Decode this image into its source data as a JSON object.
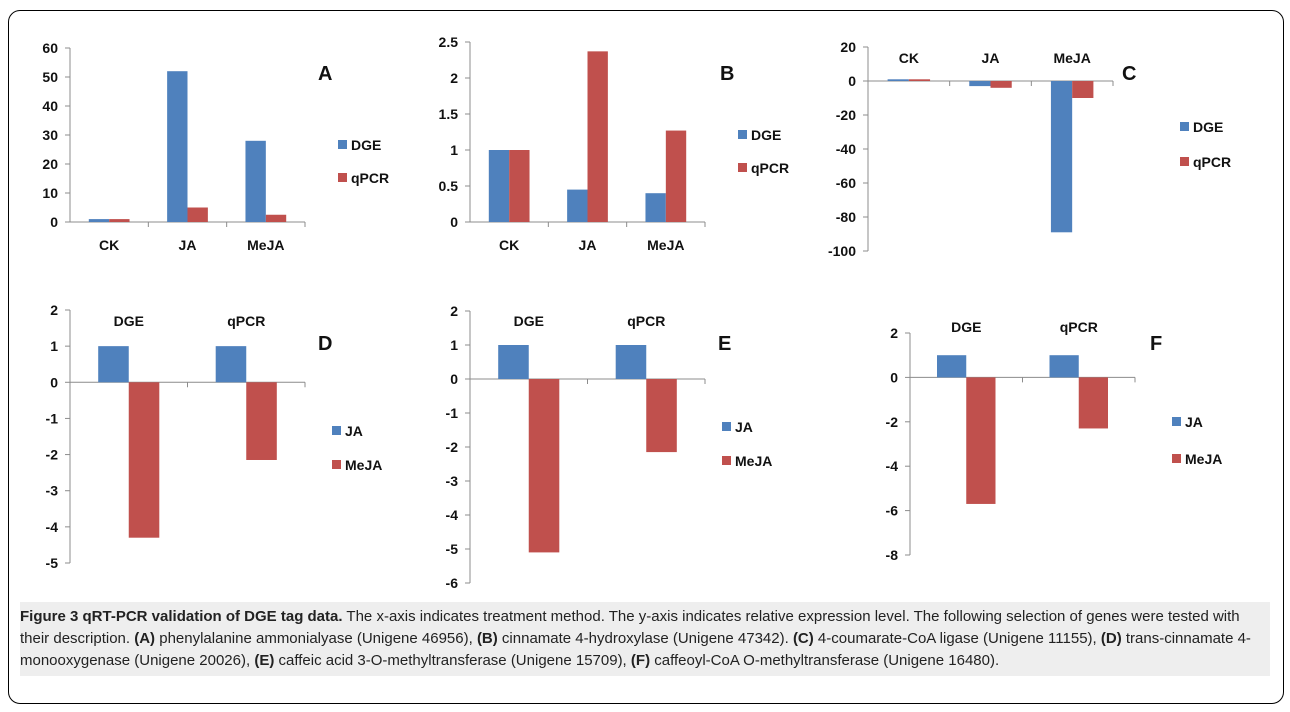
{
  "caption": {
    "title": "Figure 3 qRT-PCR validation of DGE tag data.",
    "text_1": " The x-axis indicates treatment method. The y-axis indicates relative expression level. The following selection of genes were tested with their description. ",
    "label_a": "(A)",
    "desc_a": " phenylalanine ammonialyase (Unigene 46956), ",
    "label_b": "(B)",
    "desc_b": " cinnamate 4-hydroxylase (Unigene 47342). ",
    "label_c": "(C)",
    "desc_c": " 4-coumarate-CoA ligase (Unigene 11155), ",
    "label_d": "(D)",
    "desc_d": " trans-cinnamate 4-monooxygenase (Unigene 20026), ",
    "label_e": "(E)",
    "desc_e": " caffeic acid 3-O-methyltransferase (Unigene 15709), ",
    "label_f": "(F)",
    "desc_f": " caffeoyl-CoA O-methyltransferase (Unigene 16480)."
  },
  "colors": {
    "series_1": "#4f81bd",
    "series_2": "#c0504d",
    "axis": "#8c8c8c"
  },
  "chart_data": [
    {
      "panel": "A",
      "type": "bar",
      "categories": [
        "CK",
        "JA",
        "MeJA"
      ],
      "series": [
        {
          "name": "DGE",
          "values": [
            1,
            52,
            28
          ]
        },
        {
          "name": "qPCR",
          "values": [
            1,
            5,
            2.5
          ]
        }
      ],
      "ylim": [
        0,
        60
      ],
      "yticks": [
        0,
        10,
        20,
        30,
        40,
        50,
        60
      ],
      "ytick_labels": [
        "0",
        "10",
        "20",
        "30",
        "40",
        "50",
        "60"
      ],
      "category_labels_at": "bottom"
    },
    {
      "panel": "B",
      "type": "bar",
      "categories": [
        "CK",
        "JA",
        "MeJA"
      ],
      "series": [
        {
          "name": "DGE",
          "values": [
            1,
            0.45,
            0.4
          ]
        },
        {
          "name": "qPCR",
          "values": [
            1,
            2.37,
            1.27
          ]
        }
      ],
      "ylim": [
        0,
        2.5
      ],
      "yticks": [
        0,
        0.5,
        1,
        1.5,
        2,
        2.5
      ],
      "ytick_labels": [
        "0",
        "0.5",
        "1",
        "1.5",
        "2",
        "2.5"
      ],
      "category_labels_at": "bottom"
    },
    {
      "panel": "C",
      "type": "bar",
      "categories": [
        "CK",
        "JA",
        "MeJA"
      ],
      "series": [
        {
          "name": "DGE",
          "values": [
            1,
            -3,
            -89
          ]
        },
        {
          "name": "qPCR",
          "values": [
            1,
            -4,
            -10
          ]
        }
      ],
      "ylim": [
        -100,
        20
      ],
      "yticks": [
        -100,
        -80,
        -60,
        -40,
        -20,
        0,
        20
      ],
      "ytick_labels": [
        "-100",
        "-80",
        "-60",
        "-40",
        "-20",
        "0",
        "20"
      ],
      "category_labels_at": "top"
    },
    {
      "panel": "D",
      "type": "bar",
      "categories": [
        "DGE",
        "qPCR"
      ],
      "series": [
        {
          "name": "JA",
          "values": [
            1,
            1
          ]
        },
        {
          "name": "MeJA",
          "values": [
            -4.3,
            -2.15
          ]
        }
      ],
      "ylim": [
        -5,
        2
      ],
      "yticks": [
        -5,
        -4,
        -3,
        -2,
        -1,
        0,
        1,
        2
      ],
      "ytick_labels": [
        "-5",
        "-4",
        "-3",
        "-2",
        "-1",
        "0",
        "1",
        "2"
      ],
      "category_labels_at": "top"
    },
    {
      "panel": "E",
      "type": "bar",
      "categories": [
        "DGE",
        "qPCR"
      ],
      "series": [
        {
          "name": "JA",
          "values": [
            1,
            1
          ]
        },
        {
          "name": "MeJA",
          "values": [
            -5.1,
            -2.15
          ]
        }
      ],
      "ylim": [
        -6,
        2
      ],
      "yticks": [
        -6,
        -5,
        -4,
        -3,
        -2,
        -1,
        0,
        1,
        2
      ],
      "ytick_labels": [
        "-6",
        "-5",
        "-4",
        "-3",
        "-2",
        "-1",
        "0",
        "1",
        "2"
      ],
      "category_labels_at": "top"
    },
    {
      "panel": "F",
      "type": "bar",
      "categories": [
        "DGE",
        "qPCR"
      ],
      "series": [
        {
          "name": "JA",
          "values": [
            1,
            1
          ]
        },
        {
          "name": "MeJA",
          "values": [
            -5.7,
            -2.3
          ]
        }
      ],
      "ylim": [
        -8,
        2
      ],
      "yticks": [
        -8,
        -6,
        -4,
        -2,
        0,
        2
      ],
      "ytick_labels": [
        "-8",
        "-6",
        "-4",
        "-2",
        "0",
        "2"
      ],
      "category_labels_at": "top"
    }
  ]
}
